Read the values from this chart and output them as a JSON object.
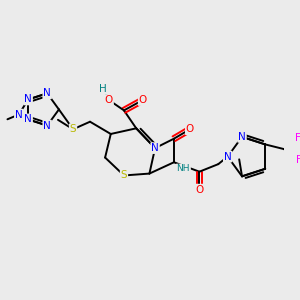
{
  "bg_color": "#ebebeb",
  "atom_colors": {
    "C": "#000000",
    "N": "#0000ff",
    "O": "#ff0000",
    "S": "#b8b800",
    "F": "#ff00ff",
    "H": "#008080"
  },
  "figsize": [
    3.0,
    3.0
  ],
  "dpi": 100
}
